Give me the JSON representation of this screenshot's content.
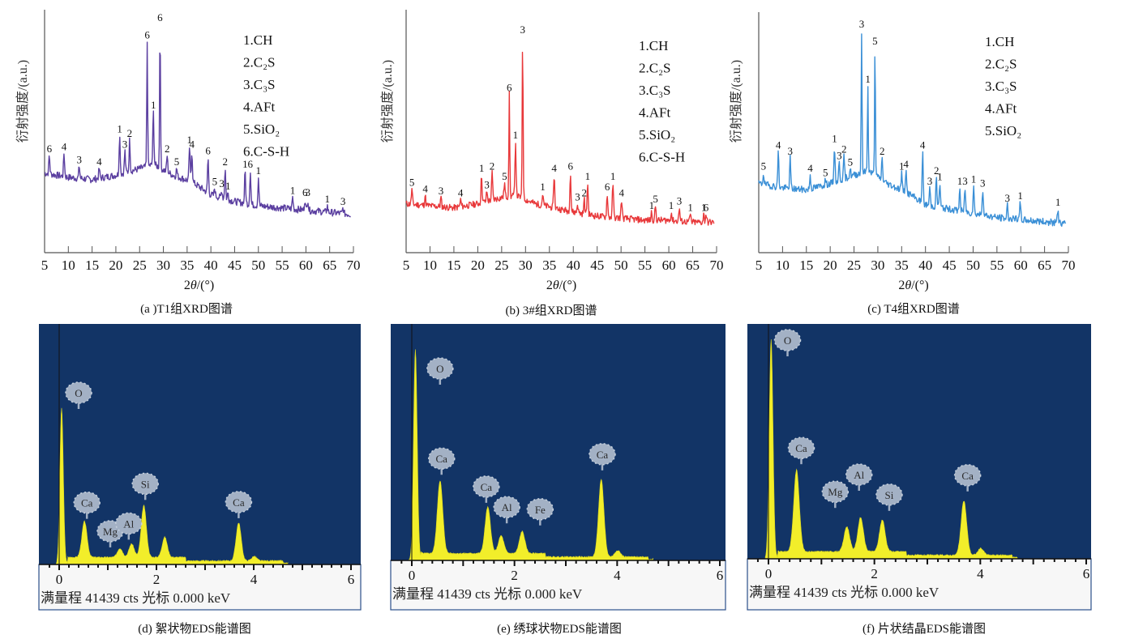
{
  "chart_data": [
    {
      "id": "a",
      "type": "line",
      "title": "(a )T1组XRD图谱",
      "xlabel": "2θ/(°)",
      "ylabel": "衍射强度/(a.u.)",
      "xlim": [
        5,
        70
      ],
      "xticks": [
        5,
        10,
        15,
        20,
        25,
        30,
        35,
        40,
        45,
        50,
        55,
        60,
        65,
        70
      ],
      "ylim": [
        0,
        100
      ],
      "color": "#5b3fa0",
      "grid": false,
      "legend_position": "top-right",
      "legend": [
        "1.CH",
        "2.C₂S",
        "3.C₃S",
        "4.AFt",
        "5.SiO₂",
        "6.C-S-H"
      ],
      "baseline": [
        [
          5,
          32
        ],
        [
          10,
          30
        ],
        [
          15,
          29
        ],
        [
          20,
          31
        ],
        [
          25,
          34
        ],
        [
          28,
          36
        ],
        [
          32,
          31
        ],
        [
          36,
          28
        ],
        [
          40,
          22
        ],
        [
          45,
          19
        ],
        [
          50,
          17
        ],
        [
          55,
          16
        ],
        [
          60,
          15
        ],
        [
          65,
          14
        ],
        [
          70,
          13
        ]
      ],
      "peaks": [
        {
          "x": 6.0,
          "y": 40,
          "label": "6"
        },
        {
          "x": 9.1,
          "y": 41,
          "label": "4"
        },
        {
          "x": 12.3,
          "y": 35,
          "label": "3"
        },
        {
          "x": 16.5,
          "y": 34,
          "label": "4"
        },
        {
          "x": 20.8,
          "y": 49,
          "label": "1"
        },
        {
          "x": 21.9,
          "y": 42,
          "label": "3"
        },
        {
          "x": 22.9,
          "y": 47,
          "label": "2"
        },
        {
          "x": 26.6,
          "y": 92,
          "label": "6"
        },
        {
          "x": 27.9,
          "y": 60,
          "label": "1"
        },
        {
          "x": 29.3,
          "y": 100,
          "label": "6"
        },
        {
          "x": 30.8,
          "y": 40,
          "label": "2"
        },
        {
          "x": 32.8,
          "y": 34,
          "label": "5"
        },
        {
          "x": 35.5,
          "y": 44,
          "label": "1"
        },
        {
          "x": 36.0,
          "y": 42,
          "label": "4"
        },
        {
          "x": 39.4,
          "y": 39,
          "label": "6"
        },
        {
          "x": 40.8,
          "y": 25,
          "label": "5"
        },
        {
          "x": 42.3,
          "y": 24,
          "label": "3"
        },
        {
          "x": 43.0,
          "y": 34,
          "label": "2"
        },
        {
          "x": 43.6,
          "y": 23,
          "label": "1"
        },
        {
          "x": 47.2,
          "y": 33,
          "label": "1"
        },
        {
          "x": 48.3,
          "y": 33,
          "label": "6"
        },
        {
          "x": 50.0,
          "y": 30,
          "label": "1"
        },
        {
          "x": 57.2,
          "y": 21,
          "label": "1"
        },
        {
          "x": 59.8,
          "y": 20,
          "label": "6"
        },
        {
          "x": 60.4,
          "y": 20,
          "label": "3"
        },
        {
          "x": 64.5,
          "y": 17,
          "label": "1"
        },
        {
          "x": 67.8,
          "y": 16,
          "label": "3"
        }
      ]
    },
    {
      "id": "b",
      "type": "line",
      "title": "(b) 3#组XRD图谱",
      "xlabel": "2θ/(°)",
      "ylabel": "衍射强度/(a.u.)",
      "xlim": [
        5,
        70
      ],
      "xticks": [
        5,
        10,
        15,
        20,
        25,
        30,
        35,
        40,
        45,
        50,
        55,
        60,
        65,
        70
      ],
      "ylim": [
        0,
        100
      ],
      "color": "#e8383a",
      "grid": false,
      "legend_position": "top-right",
      "legend": [
        "1.CH",
        "2.C₂S",
        "3.C₃S",
        "4.AFt",
        "5.SiO₂",
        "6.C-S-H"
      ],
      "baseline": [
        [
          5,
          19
        ],
        [
          10,
          18
        ],
        [
          15,
          17
        ],
        [
          20,
          19
        ],
        [
          25,
          22
        ],
        [
          28,
          23
        ],
        [
          32,
          19
        ],
        [
          36,
          17
        ],
        [
          40,
          15
        ],
        [
          45,
          13
        ],
        [
          50,
          12
        ],
        [
          55,
          11
        ],
        [
          60,
          11
        ],
        [
          65,
          10
        ],
        [
          70,
          10
        ]
      ],
      "peaks": [
        {
          "x": 6.2,
          "y": 26,
          "label": "5"
        },
        {
          "x": 9.0,
          "y": 23,
          "label": "4"
        },
        {
          "x": 12.3,
          "y": 22,
          "label": "3"
        },
        {
          "x": 16.4,
          "y": 21,
          "label": "4"
        },
        {
          "x": 20.8,
          "y": 33,
          "label": "1"
        },
        {
          "x": 21.9,
          "y": 25,
          "label": "3"
        },
        {
          "x": 23.0,
          "y": 34,
          "label": "2"
        },
        {
          "x": 25.6,
          "y": 29,
          "label": "5"
        },
        {
          "x": 26.6,
          "y": 72,
          "label": "6"
        },
        {
          "x": 27.9,
          "y": 49,
          "label": "1"
        },
        {
          "x": 29.4,
          "y": 100,
          "label": "3"
        },
        {
          "x": 33.6,
          "y": 24,
          "label": "1"
        },
        {
          "x": 36.0,
          "y": 33,
          "label": "4"
        },
        {
          "x": 39.4,
          "y": 34,
          "label": "6"
        },
        {
          "x": 40.9,
          "y": 19,
          "label": "3"
        },
        {
          "x": 42.3,
          "y": 21,
          "label": "2"
        },
        {
          "x": 43.0,
          "y": 29,
          "label": "1"
        },
        {
          "x": 47.1,
          "y": 24,
          "label": "6"
        },
        {
          "x": 48.3,
          "y": 29,
          "label": "1"
        },
        {
          "x": 50.1,
          "y": 21,
          "label": "4"
        },
        {
          "x": 56.4,
          "y": 15,
          "label": "1"
        },
        {
          "x": 57.2,
          "y": 18,
          "label": "5"
        },
        {
          "x": 60.5,
          "y": 15,
          "label": "1"
        },
        {
          "x": 62.2,
          "y": 17,
          "label": "3"
        },
        {
          "x": 64.5,
          "y": 14,
          "label": "1"
        },
        {
          "x": 67.3,
          "y": 14,
          "label": "1"
        },
        {
          "x": 67.8,
          "y": 14,
          "label": "6"
        }
      ]
    },
    {
      "id": "c",
      "type": "line",
      "title": "(c) T4组XRD图谱",
      "xlabel": "2θ/(°)",
      "ylabel": "衍射强度/(a.u.)",
      "xlim": [
        5,
        70
      ],
      "xticks": [
        5,
        10,
        15,
        20,
        25,
        30,
        35,
        40,
        45,
        50,
        55,
        60,
        65,
        70
      ],
      "ylim": [
        0,
        100
      ],
      "color": "#3a8fd6",
      "grid": false,
      "legend_position": "top-right",
      "legend": [
        "1.CH",
        "2.C₂S",
        "3.C₃S",
        "4.AFt",
        "5.SiO₂"
      ],
      "baseline": [
        [
          5,
          28
        ],
        [
          10,
          26
        ],
        [
          15,
          25
        ],
        [
          20,
          28
        ],
        [
          25,
          32
        ],
        [
          28,
          34
        ],
        [
          32,
          28
        ],
        [
          36,
          24
        ],
        [
          40,
          18
        ],
        [
          45,
          16
        ],
        [
          50,
          14
        ],
        [
          55,
          12
        ],
        [
          60,
          11
        ],
        [
          65,
          10
        ],
        [
          70,
          9
        ]
      ],
      "peaks": [
        {
          "x": 6.0,
          "y": 33,
          "label": "5"
        },
        {
          "x": 9.1,
          "y": 43,
          "label": "4"
        },
        {
          "x": 11.6,
          "y": 40,
          "label": "3"
        },
        {
          "x": 15.8,
          "y": 32,
          "label": "4"
        },
        {
          "x": 19.0,
          "y": 30,
          "label": "5"
        },
        {
          "x": 20.9,
          "y": 46,
          "label": "1"
        },
        {
          "x": 21.9,
          "y": 38,
          "label": "3"
        },
        {
          "x": 22.9,
          "y": 41,
          "label": "2"
        },
        {
          "x": 24.2,
          "y": 35,
          "label": "5"
        },
        {
          "x": 26.6,
          "y": 100,
          "label": "3"
        },
        {
          "x": 27.9,
          "y": 74,
          "label": "1"
        },
        {
          "x": 29.4,
          "y": 92,
          "label": "5"
        },
        {
          "x": 30.9,
          "y": 40,
          "label": "2"
        },
        {
          "x": 35.0,
          "y": 33,
          "label": "1"
        },
        {
          "x": 35.9,
          "y": 34,
          "label": "4"
        },
        {
          "x": 39.4,
          "y": 43,
          "label": "4"
        },
        {
          "x": 40.9,
          "y": 26,
          "label": "3"
        },
        {
          "x": 42.3,
          "y": 31,
          "label": "2"
        },
        {
          "x": 43.0,
          "y": 28,
          "label": "1"
        },
        {
          "x": 47.2,
          "y": 26,
          "label": "1"
        },
        {
          "x": 48.3,
          "y": 26,
          "label": "3"
        },
        {
          "x": 50.1,
          "y": 27,
          "label": "1"
        },
        {
          "x": 52.0,
          "y": 25,
          "label": "3"
        },
        {
          "x": 57.2,
          "y": 18,
          "label": "3"
        },
        {
          "x": 59.9,
          "y": 19,
          "label": "1"
        },
        {
          "x": 67.8,
          "y": 16,
          "label": "1"
        }
      ]
    },
    {
      "id": "d",
      "type": "area",
      "title": "(d) 絮状物EDS能谱图",
      "xlabel": "keV",
      "xlim": [
        0,
        6
      ],
      "xticks": [
        0,
        2,
        4,
        6
      ],
      "ylim": [
        0,
        100
      ],
      "full_scale": "满量程",
      "counts": "41439 cts",
      "cursor_label": "光标",
      "cursor_value": "0.000",
      "unit": "keV",
      "peaks": [
        {
          "x": 0.05,
          "y": 69,
          "element": "O"
        },
        {
          "x": 0.52,
          "y": 16,
          "element": "Ca"
        },
        {
          "x": 1.25,
          "y": 4,
          "element": "Mg"
        },
        {
          "x": 1.49,
          "y": 6,
          "element": "Al"
        },
        {
          "x": 1.74,
          "y": 23,
          "element": "Si"
        },
        {
          "x": 2.17,
          "y": 9,
          "element": ""
        },
        {
          "x": 3.69,
          "y": 17,
          "element": "Ca"
        },
        {
          "x": 4.01,
          "y": 2,
          "element": ""
        }
      ]
    },
    {
      "id": "e",
      "type": "area",
      "title": "(e) 绣球状物EDS能谱图",
      "xlabel": "keV",
      "xlim": [
        0,
        6
      ],
      "xticks": [
        0,
        2,
        4,
        6
      ],
      "ylim": [
        0,
        100
      ],
      "full_scale": "满量程",
      "counts": "41439 cts",
      "cursor_label": "光标",
      "cursor_value": "0.000",
      "unit": "keV",
      "peaks": [
        {
          "x": 0.07,
          "y": 95,
          "element": "O"
        },
        {
          "x": 0.55,
          "y": 33,
          "element": "Ca"
        },
        {
          "x": 1.48,
          "y": 21,
          "element": "Ca"
        },
        {
          "x": 1.74,
          "y": 8,
          "element": "Al"
        },
        {
          "x": 2.15,
          "y": 10,
          "element": "Fe"
        },
        {
          "x": 3.69,
          "y": 35,
          "element": "Ca"
        },
        {
          "x": 4.01,
          "y": 3,
          "element": ""
        }
      ]
    },
    {
      "id": "f",
      "type": "area",
      "title": "(f) 片状结晶EDS能谱图",
      "xlabel": "keV",
      "xlim": [
        0,
        6
      ],
      "xticks": [
        0,
        2,
        4,
        6
      ],
      "ylim": [
        0,
        100
      ],
      "full_scale": "满量程",
      "counts": "41439 cts",
      "cursor_label": "光标",
      "cursor_value": "0.000",
      "unit": "keV",
      "peaks": [
        {
          "x": 0.05,
          "y": 96,
          "element": "O"
        },
        {
          "x": 0.53,
          "y": 36,
          "element": "Ca"
        },
        {
          "x": 1.48,
          "y": 11,
          "element": "Mg"
        },
        {
          "x": 1.74,
          "y": 15,
          "element": "Al"
        },
        {
          "x": 2.15,
          "y": 14,
          "element": "Si"
        },
        {
          "x": 3.69,
          "y": 24,
          "element": "Ca"
        },
        {
          "x": 4.01,
          "y": 3,
          "element": ""
        }
      ]
    }
  ],
  "eds_colors": {
    "background": "#123466",
    "spectrum": "#f2ee2a",
    "bubble": "#a3b1c5",
    "bubble_text": "#2a2a2a",
    "strip": "#f7f7f7"
  }
}
